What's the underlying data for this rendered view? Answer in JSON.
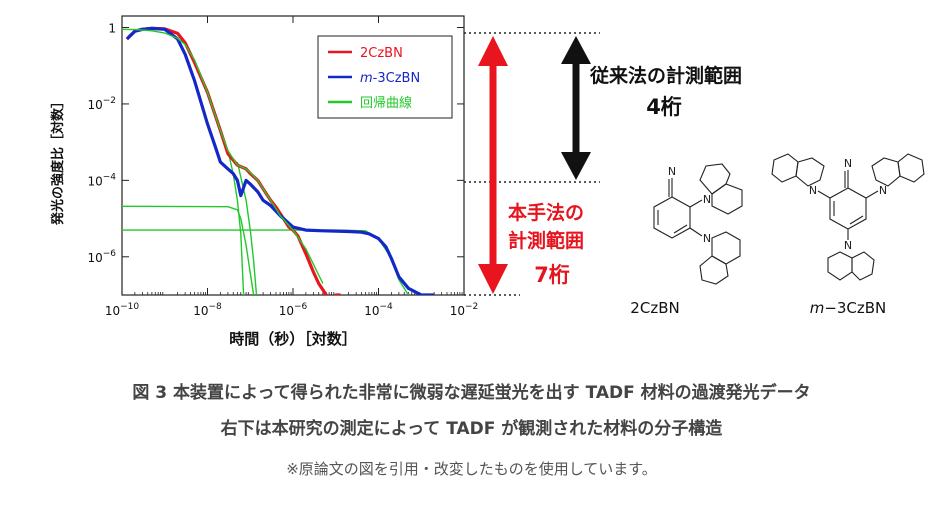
{
  "chart_data": {
    "type": "line",
    "xscale": "log",
    "yscale": "log",
    "xlim": [
      1e-10,
      0.01
    ],
    "ylim": [
      1e-07,
      2
    ],
    "xlabel": "時間（秒）［対数］",
    "ylabel": "発光の強度比［対数］",
    "x_ticks": [
      {
        "v": 1e-10,
        "base": "10",
        "exp": "−10"
      },
      {
        "v": 1e-08,
        "base": "10",
        "exp": "−8"
      },
      {
        "v": 1e-06,
        "base": "10",
        "exp": "−6"
      },
      {
        "v": 0.0001,
        "base": "10",
        "exp": "−4"
      },
      {
        "v": 0.01,
        "base": "10",
        "exp": "−2"
      }
    ],
    "y_ticks": [
      {
        "v": 1,
        "base": "1",
        "exp": ""
      },
      {
        "v": 0.01,
        "base": "10",
        "exp": "−2"
      },
      {
        "v": 0.0001,
        "base": "10",
        "exp": "−4"
      },
      {
        "v": 1e-06,
        "base": "10",
        "exp": "−6"
      }
    ],
    "legend_position": "top-right",
    "series": [
      {
        "name": "2CzBN",
        "legend_prefix": "",
        "legend_suffix": "2CzBN",
        "color": "#e8141e",
        "x": [
          1.3e-10,
          2e-10,
          3e-10,
          5e-10,
          1e-09,
          2e-09,
          3e-09,
          5e-09,
          1e-08,
          2e-08,
          3e-08,
          5e-08,
          8e-08,
          1e-07,
          1.5e-07,
          2e-07,
          3e-07,
          4e-07,
          6e-07,
          8e-07,
          1e-06,
          1.3e-06,
          2e-06,
          3e-06,
          4e-06,
          6e-06,
          8e-06,
          1e-05,
          1.3e-05
        ],
        "y": [
          0.5,
          0.8,
          0.9,
          0.95,
          0.92,
          0.7,
          0.4,
          0.12,
          0.02,
          0.002,
          0.0005,
          0.00025,
          0.0002,
          0.00015,
          0.0001,
          6e-05,
          3e-05,
          2e-05,
          1e-05,
          6e-06,
          5e-06,
          3.5e-06,
          1.2e-06,
          4e-07,
          2e-07,
          1e-07,
          8e-08,
          1e-07,
          1e-07
        ]
      },
      {
        "name": "m-3CzBN",
        "legend_prefix": "m",
        "legend_suffix": "-3CzBN",
        "color": "#1428c8",
        "x": [
          1.3e-10,
          2e-10,
          3e-10,
          5e-10,
          1e-09,
          2e-09,
          3e-09,
          5e-09,
          1e-08,
          1.5e-08,
          2e-08,
          3e-08,
          4e-08,
          5e-08,
          6e-08,
          8e-08,
          1e-07,
          1.5e-07,
          2e-07,
          3e-07,
          5e-07,
          1e-06,
          2e-06,
          5e-06,
          1e-05,
          2e-05,
          4e-05,
          6e-05,
          0.0001,
          0.00015,
          0.0002,
          0.0003,
          0.0005,
          0.001,
          0.002
        ],
        "y": [
          0.5,
          0.8,
          0.9,
          0.95,
          0.9,
          0.5,
          0.2,
          0.04,
          0.003,
          0.0008,
          0.0003,
          0.0002,
          0.00015,
          0.0001,
          4e-05,
          0.0001,
          8e-05,
          5e-05,
          3e-05,
          2.2e-05,
          1.2e-05,
          6e-06,
          5e-06,
          4.8e-06,
          4.7e-06,
          4.6e-06,
          4.4e-06,
          4e-06,
          3e-06,
          1.8e-06,
          9e-07,
          3e-07,
          1.5e-07,
          1e-07,
          1e-07
        ]
      },
      {
        "name": "回帰曲線",
        "legend_prefix": "",
        "legend_suffix": "回帰曲線",
        "color": "#22c82a",
        "x": [
          1e-10,
          2e-10,
          3e-10,
          5e-10,
          1e-09,
          2e-09,
          3e-09,
          5e-09,
          1e-08,
          2e-08,
          3e-08,
          5e-08,
          8e-08,
          1e-07,
          1.5e-07,
          2e-07,
          3e-07,
          5e-07,
          1e-06,
          2e-06,
          5e-06
        ],
        "y": [
          0.9,
          0.88,
          0.86,
          0.82,
          0.72,
          0.52,
          0.36,
          0.14,
          0.02,
          0.002,
          0.0006,
          0.00025,
          0.0002,
          0.00016,
          0.0001,
          6e-05,
          3e-05,
          1.2e-05,
          5e-06,
          1.6e-06,
          2e-07
        ]
      }
    ],
    "fit_lines": [
      {
        "name": "回帰曲線-2CzBN-tail",
        "x": [
          1e-10,
          3e-08,
          5e-08,
          6e-08,
          8e-08,
          1.2e-07
        ],
        "y": [
          2.1e-05,
          2.05e-05,
          1.7e-05,
          1e-05,
          2e-06,
          1e-07
        ]
      },
      {
        "name": "回帰曲線-m-3CzBN-tail",
        "x": [
          1e-10,
          1e-05,
          5e-05,
          0.0001,
          0.0002,
          0.0003,
          0.0005
        ],
        "y": [
          5e-06,
          5e-06,
          4.8e-06,
          3e-06,
          9e-07,
          2.5e-07,
          1e-07
        ]
      },
      {
        "name": "回帰曲線-fast-a",
        "x": [
          3e-08,
          4e-08,
          5e-08,
          6e-08,
          7e-08
        ],
        "y": [
          0.0006,
          0.00015,
          3e-05,
          4e-06,
          1e-07
        ]
      },
      {
        "name": "回帰曲線-fast-b",
        "x": [
          5e-08,
          8e-08,
          1e-07,
          1.2e-07,
          1.4e-07
        ],
        "y": [
          0.0003,
          3e-05,
          5e-06,
          8e-07,
          1e-07
        ]
      }
    ]
  },
  "annotations": {
    "black_arrow_label_1": "従来法の計測範囲",
    "black_arrow_label_2": "4桁",
    "red_arrow_label_1": "本手法の",
    "red_arrow_label_2": "計測範囲",
    "red_arrow_label_3": "7桁"
  },
  "molecules": {
    "left_name": "2CzBN",
    "right_name_prefix": "m",
    "right_name_suffix": "−3CzBN",
    "nitrile_label": "N",
    "amine_label": "N"
  },
  "captions": {
    "line1": "図 3  本装置によって得られた非常に微弱な遅延蛍光を出す TADF 材料の過渡発光データ",
    "line2": "右下は本研究の測定によって TADF が観測された材料の分子構造",
    "note": "※原論文の図を引用・改変したものを使用しています。"
  },
  "colors": {
    "red_arrow": "#e8141e",
    "black_arrow": "#111111",
    "guide_dots": "#222222"
  }
}
